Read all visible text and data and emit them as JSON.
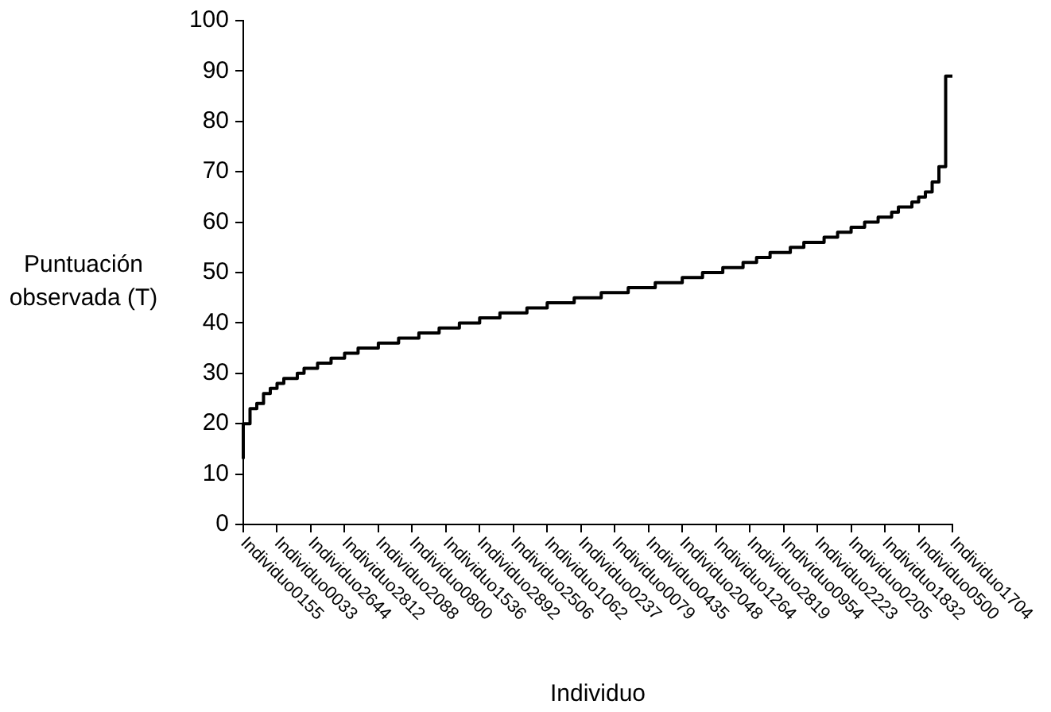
{
  "chart_data": {
    "type": "step",
    "xlabel": "Individuo",
    "ylabel": "Puntuación observada (T)",
    "categories": [
      "Individuo0155",
      null,
      null,
      null,
      null,
      "Individuo0033",
      null,
      null,
      null,
      null,
      "Individuo2644",
      null,
      null,
      null,
      null,
      "Individuo2812",
      null,
      null,
      null,
      null,
      "Individuo2088",
      null,
      null,
      null,
      null,
      "Individuo0800",
      null,
      null,
      null,
      null,
      "Individuo1536",
      null,
      null,
      null,
      null,
      "Individuo2892",
      null,
      null,
      null,
      null,
      "Individuo2506",
      null,
      null,
      null,
      null,
      "Individuo1062",
      null,
      null,
      null,
      null,
      "Individuo0237",
      null,
      null,
      null,
      null,
      "Individuo0079",
      null,
      null,
      null,
      null,
      "Individuo0435",
      null,
      null,
      null,
      null,
      "Individuo2048",
      null,
      null,
      null,
      null,
      "Individuo1264",
      null,
      null,
      null,
      null,
      "Individuo2819",
      null,
      null,
      null,
      null,
      "Individuo0954",
      null,
      null,
      null,
      null,
      "Individuo2223",
      null,
      null,
      null,
      null,
      "Individuo0205",
      null,
      null,
      null,
      null,
      "Individuo1832",
      null,
      null,
      null,
      null,
      "Individuo0500",
      null,
      null,
      null,
      null,
      "Individuo1704"
    ],
    "series": [
      {
        "color": "#000000",
        "values": [
          13,
          20,
          23,
          24,
          26,
          27,
          28,
          29,
          29,
          30,
          31,
          31,
          32,
          32,
          33,
          33,
          34,
          34,
          35,
          35,
          35,
          36,
          36,
          36,
          37,
          37,
          37,
          38,
          38,
          38,
          39,
          39,
          39,
          40,
          40,
          40,
          41,
          41,
          41,
          42,
          42,
          42,
          42,
          43,
          43,
          43,
          44,
          44,
          44,
          44,
          45,
          45,
          45,
          45,
          46,
          46,
          46,
          46,
          47,
          47,
          47,
          47,
          48,
          48,
          48,
          48,
          49,
          49,
          49,
          50,
          50,
          50,
          51,
          51,
          51,
          52,
          52,
          53,
          53,
          54,
          54,
          54,
          55,
          55,
          56,
          56,
          56,
          57,
          57,
          58,
          58,
          59,
          59,
          60,
          60,
          61,
          61,
          62,
          63,
          63,
          64,
          65,
          66,
          68,
          71,
          89
        ]
      }
    ],
    "ylim": [
      0,
      100
    ],
    "yticks": [
      0,
      10,
      20,
      30,
      40,
      50,
      60,
      70,
      80,
      90,
      100
    ],
    "grid": false,
    "legend": false,
    "marker": "none",
    "line_style": "solid"
  }
}
